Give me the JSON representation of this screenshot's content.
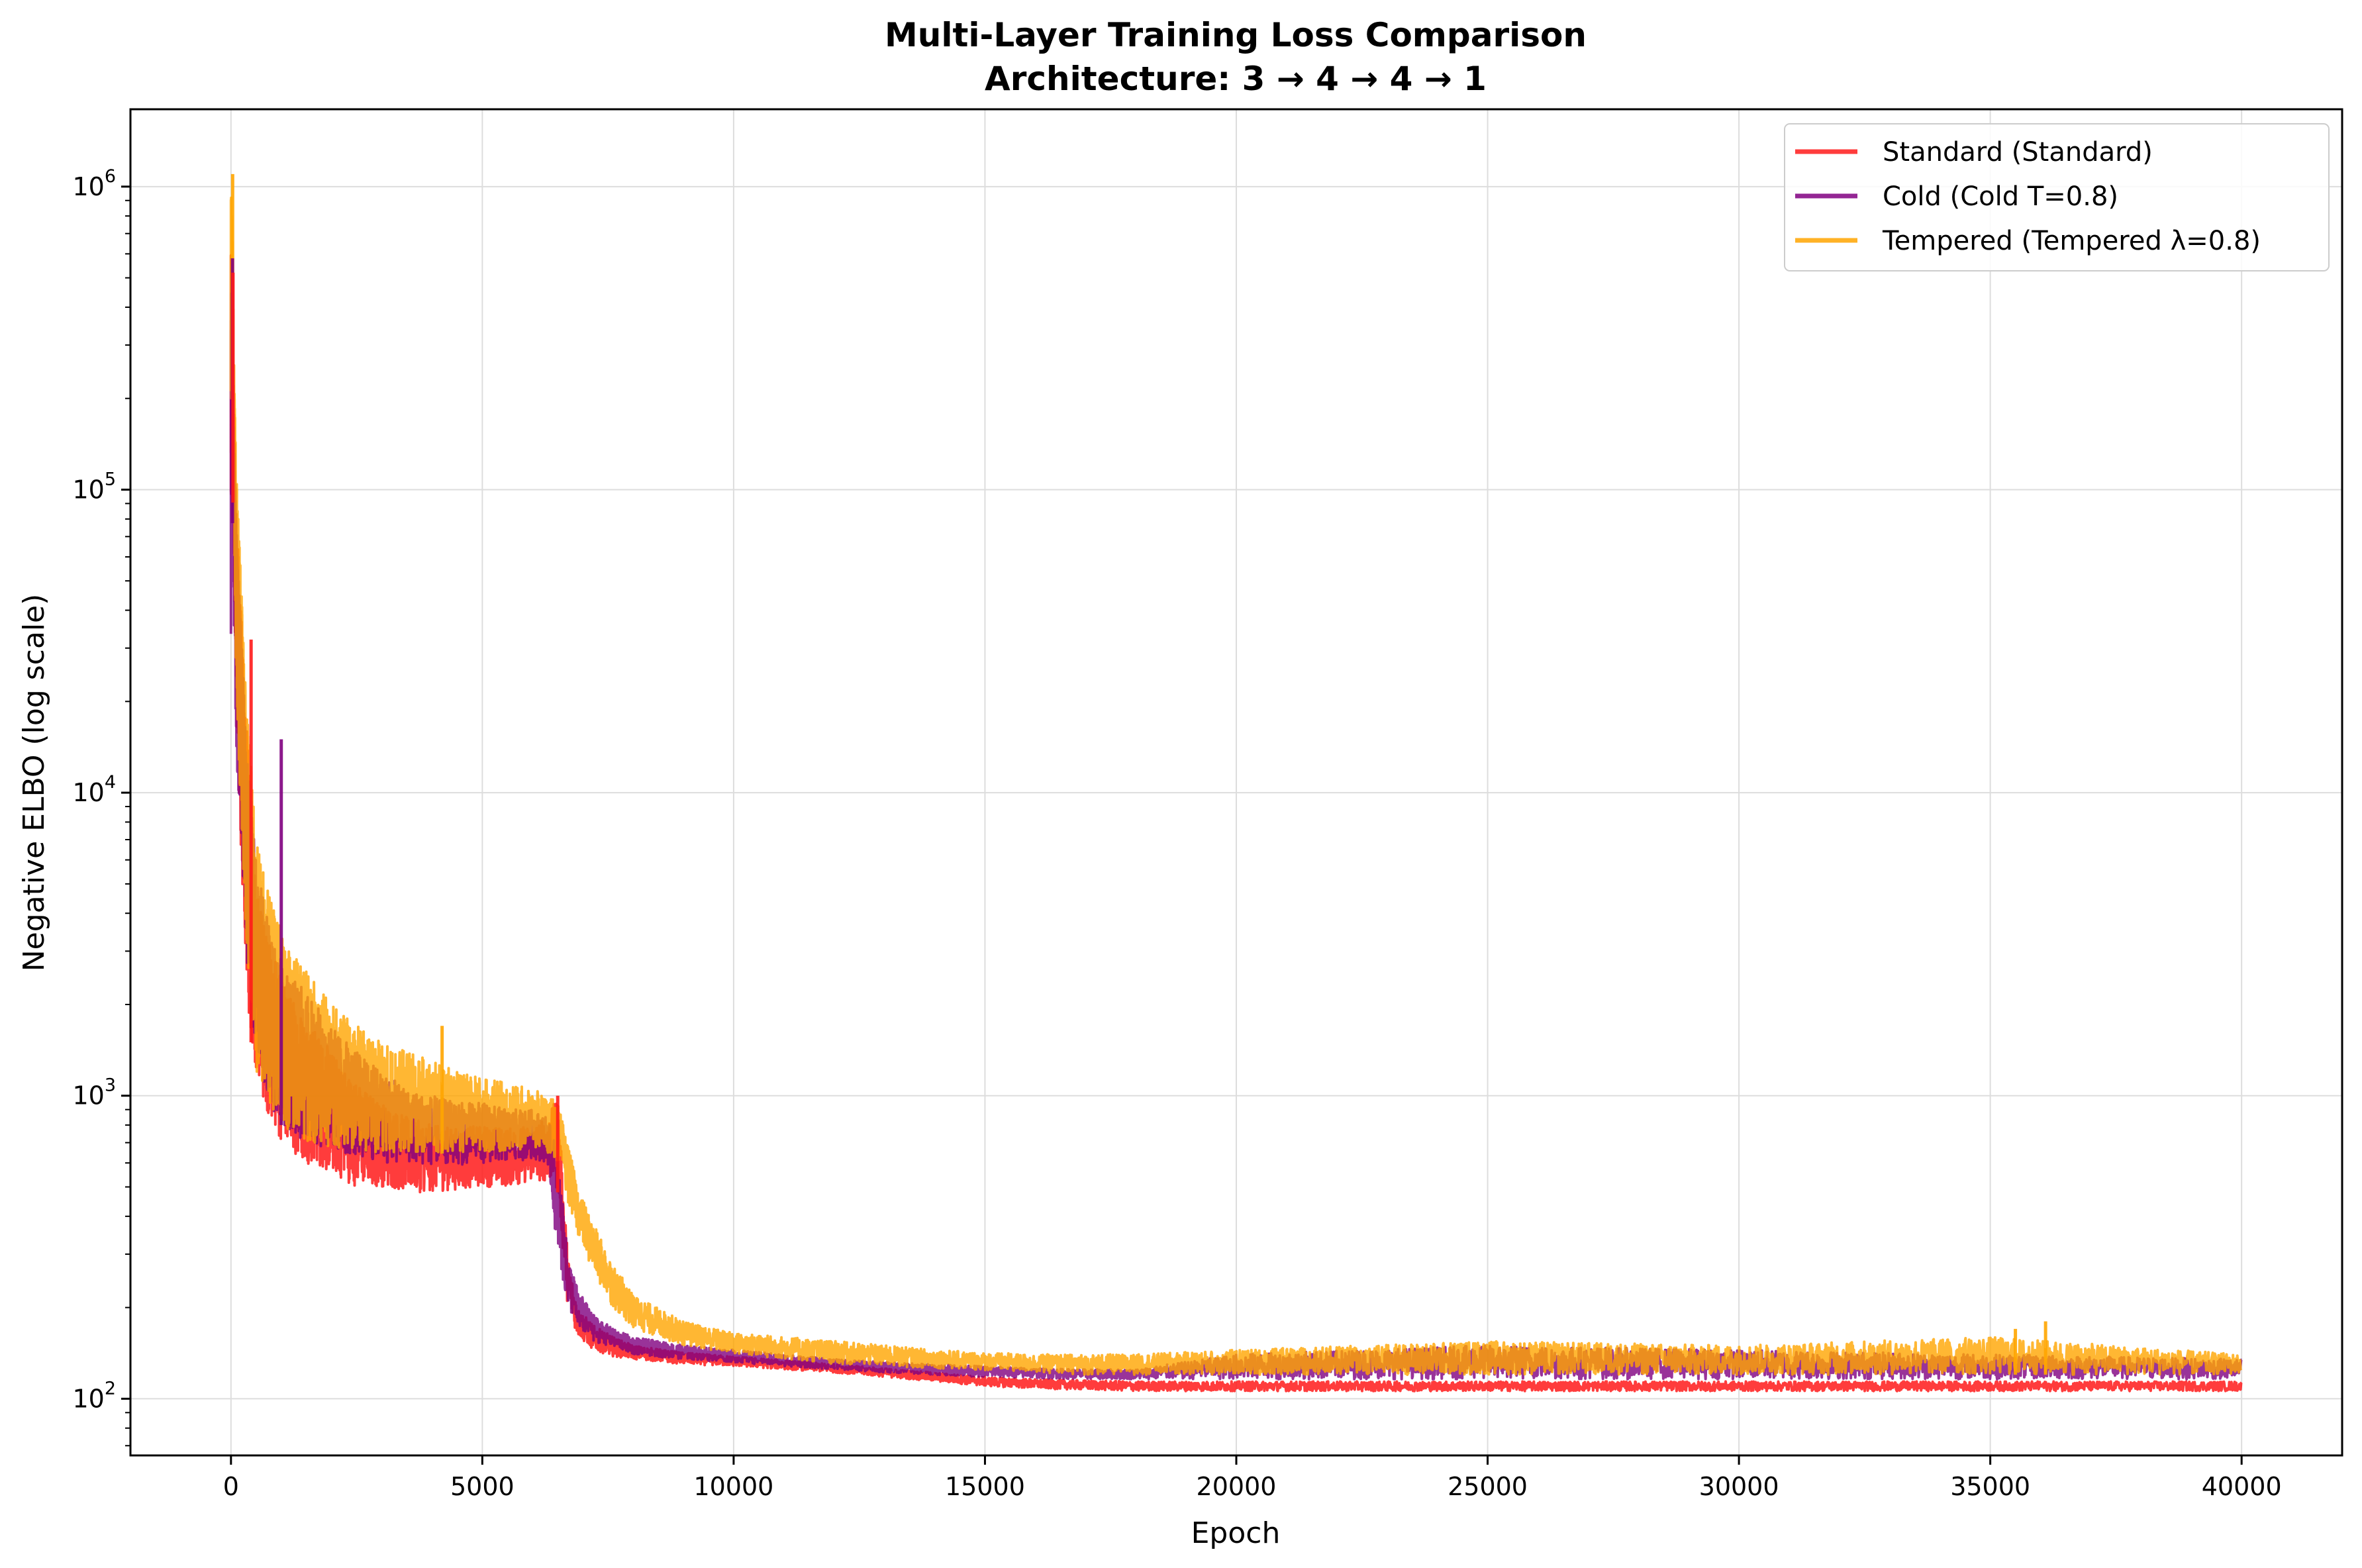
{
  "chart_data": {
    "type": "line",
    "title": "Multi-Layer Training Loss Comparison",
    "subtitle": "Architecture: 3 → 4 → 4 → 1",
    "xlabel": "Epoch",
    "ylabel": "Negative ELBO (log scale)",
    "xscale": "linear",
    "yscale": "log",
    "xlim": [
      -2000,
      42000
    ],
    "ylim": [
      65,
      1800000
    ],
    "grid": true,
    "legend_position": "top-right",
    "x_ticks": [
      {
        "value": 0,
        "label": "0"
      },
      {
        "value": 5000,
        "label": "5000"
      },
      {
        "value": 10000,
        "label": "10000"
      },
      {
        "value": 15000,
        "label": "15000"
      },
      {
        "value": 20000,
        "label": "20000"
      },
      {
        "value": 25000,
        "label": "25000"
      },
      {
        "value": 30000,
        "label": "30000"
      },
      {
        "value": 35000,
        "label": "35000"
      },
      {
        "value": 40000,
        "label": "40000"
      }
    ],
    "y_ticks": [
      {
        "value": 100,
        "base": "10",
        "exp": "2"
      },
      {
        "value": 1000,
        "base": "10",
        "exp": "3"
      },
      {
        "value": 10000,
        "base": "10",
        "exp": "4"
      },
      {
        "value": 100000,
        "base": "10",
        "exp": "5"
      },
      {
        "value": 1000000,
        "base": "10",
        "exp": "6"
      }
    ],
    "series": [
      {
        "name": "Standard (Standard)",
        "color": "#ff1a1a",
        "x": [
          0,
          20,
          100,
          200,
          300,
          400,
          500,
          700,
          1000,
          1500,
          2000,
          2500,
          3000,
          3500,
          4000,
          4500,
          5000,
          5500,
          6000,
          6300,
          6500,
          6700,
          6900,
          7200,
          7600,
          8000,
          9000,
          10000,
          11000,
          12000,
          13000,
          14000,
          15000,
          16000,
          17000,
          18000,
          20000,
          25000,
          30000,
          35000,
          40000
        ],
        "lo": [
          60000,
          150000,
          20000,
          6000,
          2500,
          1500,
          1200,
          900,
          700,
          600,
          550,
          500,
          500,
          480,
          480,
          490,
          500,
          500,
          520,
          520,
          480,
          200,
          160,
          145,
          138,
          135,
          130,
          128,
          125,
          122,
          118,
          114,
          110,
          108,
          107,
          106,
          106,
          106,
          106,
          106,
          106
        ],
        "hi": [
          600000,
          400000,
          90000,
          40000,
          18000,
          9000,
          5000,
          3500,
          2400,
          1800,
          1400,
          1100,
          950,
          850,
          800,
          780,
          800,
          780,
          800,
          850,
          1000,
          300,
          200,
          175,
          160,
          150,
          142,
          138,
          134,
          130,
          126,
          122,
          118,
          116,
          115,
          114,
          114,
          114,
          114,
          114,
          114
        ]
      },
      {
        "name": "Cold (Cold T=0.8)",
        "color": "#800080",
        "x": [
          0,
          20,
          100,
          200,
          300,
          400,
          500,
          700,
          1000,
          1500,
          2000,
          2500,
          3000,
          3500,
          4000,
          4500,
          5000,
          5500,
          6000,
          6300,
          6500,
          6700,
          6900,
          7200,
          7600,
          8000,
          9000,
          10000,
          11000,
          12000,
          13000,
          14000,
          15000,
          16000,
          17000,
          18000,
          20000,
          25000,
          30000,
          35000,
          40000
        ],
        "lo": [
          30000,
          100000,
          13000,
          7000,
          3000,
          1800,
          1300,
          1000,
          800,
          700,
          650,
          620,
          600,
          600,
          590,
          590,
          600,
          600,
          620,
          600,
          300,
          200,
          170,
          155,
          148,
          140,
          135,
          132,
          128,
          125,
          122,
          120,
          118,
          117,
          116,
          116,
          116,
          116,
          116,
          116,
          116
        ],
        "hi": [
          500000,
          350000,
          80000,
          35000,
          15000,
          10000,
          6000,
          4000,
          2800,
          2200,
          1700,
          1400,
          1200,
          1050,
          1000,
          950,
          950,
          900,
          900,
          850,
          650,
          300,
          230,
          190,
          170,
          160,
          150,
          145,
          140,
          135,
          132,
          130,
          128,
          126,
          125,
          125,
          140,
          150,
          145,
          140,
          135
        ]
      },
      {
        "name": "Tempered (Tempered λ=0.8)",
        "color": "#ffa500",
        "x": [
          0,
          20,
          100,
          200,
          300,
          400,
          500,
          700,
          1000,
          1500,
          2000,
          2500,
          3000,
          3500,
          4000,
          4500,
          5000,
          5500,
          6000,
          6300,
          6500,
          6700,
          6900,
          7200,
          7600,
          8000,
          9000,
          10000,
          11000,
          12000,
          13000,
          14000,
          15000,
          16000,
          17000,
          18000,
          20000,
          25000,
          30000,
          35000,
          40000
        ],
        "lo": [
          100000,
          300000,
          25000,
          8000,
          3500,
          1800,
          1200,
          950,
          800,
          700,
          680,
          660,
          650,
          640,
          640,
          650,
          650,
          650,
          660,
          650,
          600,
          450,
          350,
          260,
          200,
          170,
          150,
          140,
          135,
          130,
          128,
          126,
          124,
          122,
          120,
          120,
          120,
          120,
          120,
          120,
          120
        ]
      },
      {
        "name": "",
        "color": "#ffa500",
        "x": [],
        "lo": []
      }
    ],
    "series_hi_tempered": [
      1100000,
      700000,
      120000,
      50000,
      20000,
      12000,
      7000,
      5000,
      3500,
      2600,
      2000,
      1700,
      1500,
      1400,
      1300,
      1200,
      1150,
      1100,
      1050,
      1000,
      950,
      700,
      500,
      380,
      280,
      220,
      180,
      165,
      160,
      155,
      150,
      145,
      142,
      140,
      140,
      140,
      145,
      155,
      150,
      160,
      140
    ],
    "spikes": [
      {
        "series": 2,
        "x": 33,
        "y": 1100000
      },
      {
        "series": 1,
        "x": 30,
        "y": 580000
      },
      {
        "series": 0,
        "x": 40,
        "y": 520000
      },
      {
        "series": 0,
        "x": 400,
        "y": 32000
      },
      {
        "series": 1,
        "x": 1000,
        "y": 15000
      },
      {
        "series": 2,
        "x": 4200,
        "y": 1700
      },
      {
        "series": 0,
        "x": 6500,
        "y": 1000
      },
      {
        "series": 2,
        "x": 36100,
        "y": 180
      },
      {
        "series": 2,
        "x": 35500,
        "y": 170
      }
    ]
  }
}
